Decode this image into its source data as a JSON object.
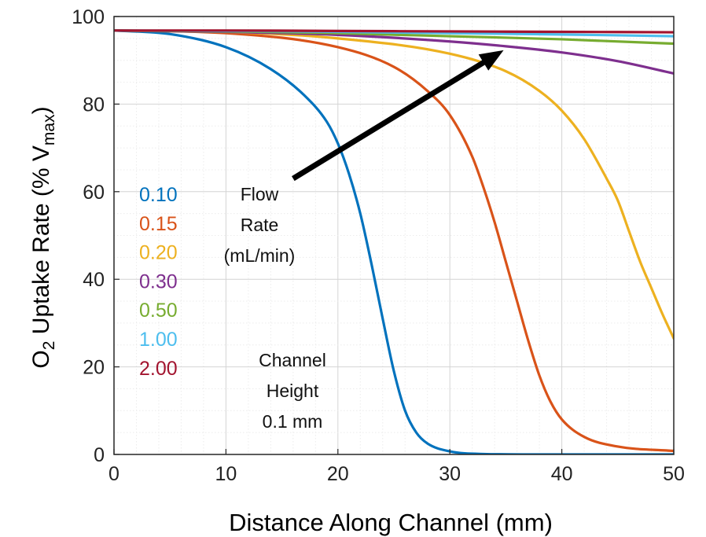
{
  "chart_data": {
    "type": "line",
    "title": "",
    "xlabel": "Distance Along Channel (mm)",
    "ylabel": {
      "prefix": "O",
      "prefix_sub": "2",
      "middle": " Uptake Rate (% V",
      "sub": "max",
      "suffix": ")"
    },
    "xlim": [
      0,
      50
    ],
    "ylim": [
      0,
      100
    ],
    "xticks": [
      0,
      10,
      20,
      30,
      40,
      50
    ],
    "yticks": [
      0,
      20,
      40,
      60,
      80,
      100
    ],
    "grid": true,
    "legend_placement": "left, inside plot",
    "series": [
      {
        "name": "0.10",
        "color": "#0072BD",
        "x": [
          0,
          5,
          10,
          14,
          17,
          19,
          20,
          21,
          22,
          23,
          24,
          25,
          26,
          27,
          28,
          30,
          33,
          38,
          50
        ],
        "y": [
          96.8,
          96.0,
          93.0,
          88.0,
          82.0,
          76.0,
          71.0,
          64.0,
          55.0,
          43.5,
          31.0,
          19.0,
          10.0,
          5.0,
          2.5,
          0.7,
          0.1,
          0.0,
          0.0
        ]
      },
      {
        "name": "0.15",
        "color": "#D95319",
        "x": [
          0,
          10,
          20,
          25,
          28,
          30,
          32,
          33,
          34,
          35,
          36,
          37,
          38,
          39,
          40,
          42,
          45,
          50
        ],
        "y": [
          96.8,
          96.2,
          93.0,
          88.5,
          83.0,
          77.5,
          68.0,
          61.0,
          53.0,
          44.0,
          35.0,
          26.0,
          18.0,
          12.0,
          8.0,
          4.0,
          1.8,
          0.8
        ]
      },
      {
        "name": "0.20",
        "color": "#EDB120",
        "x": [
          0,
          10,
          20,
          30,
          35,
          38,
          40,
          42,
          44,
          45,
          46,
          47,
          48,
          49,
          50
        ],
        "y": [
          96.8,
          96.5,
          95.0,
          91.5,
          87.5,
          83.0,
          78.5,
          72.0,
          63.0,
          58.0,
          51.0,
          44.0,
          38.0,
          32.0,
          26.5
        ]
      },
      {
        "name": "0.30",
        "color": "#7E2F8E",
        "x": [
          0,
          10,
          20,
          30,
          35,
          40,
          45,
          50
        ],
        "y": [
          96.8,
          96.5,
          95.8,
          94.3,
          93.2,
          91.8,
          89.8,
          87.0
        ]
      },
      {
        "name": "0.50",
        "color": "#77AC30",
        "x": [
          0,
          10,
          20,
          30,
          40,
          50
        ],
        "y": [
          96.8,
          96.6,
          96.2,
          95.5,
          94.8,
          93.8
        ]
      },
      {
        "name": "1.00",
        "color": "#4DBEEE",
        "x": [
          0,
          10,
          20,
          30,
          40,
          50
        ],
        "y": [
          96.8,
          96.7,
          96.5,
          96.2,
          95.9,
          95.5
        ]
      },
      {
        "name": "2.00",
        "color": "#A2142F",
        "x": [
          0,
          10,
          20,
          30,
          40,
          50
        ],
        "y": [
          96.8,
          96.8,
          96.7,
          96.6,
          96.5,
          96.4
        ]
      }
    ],
    "annotations": {
      "flow_rate": [
        "Flow",
        "Rate",
        "(mL/min)"
      ],
      "channel_height": [
        "Channel",
        "Height",
        "0.1 mm"
      ],
      "arrow": {
        "from": [
          16,
          63
        ],
        "to": [
          34.8,
          92.3
        ]
      }
    }
  }
}
